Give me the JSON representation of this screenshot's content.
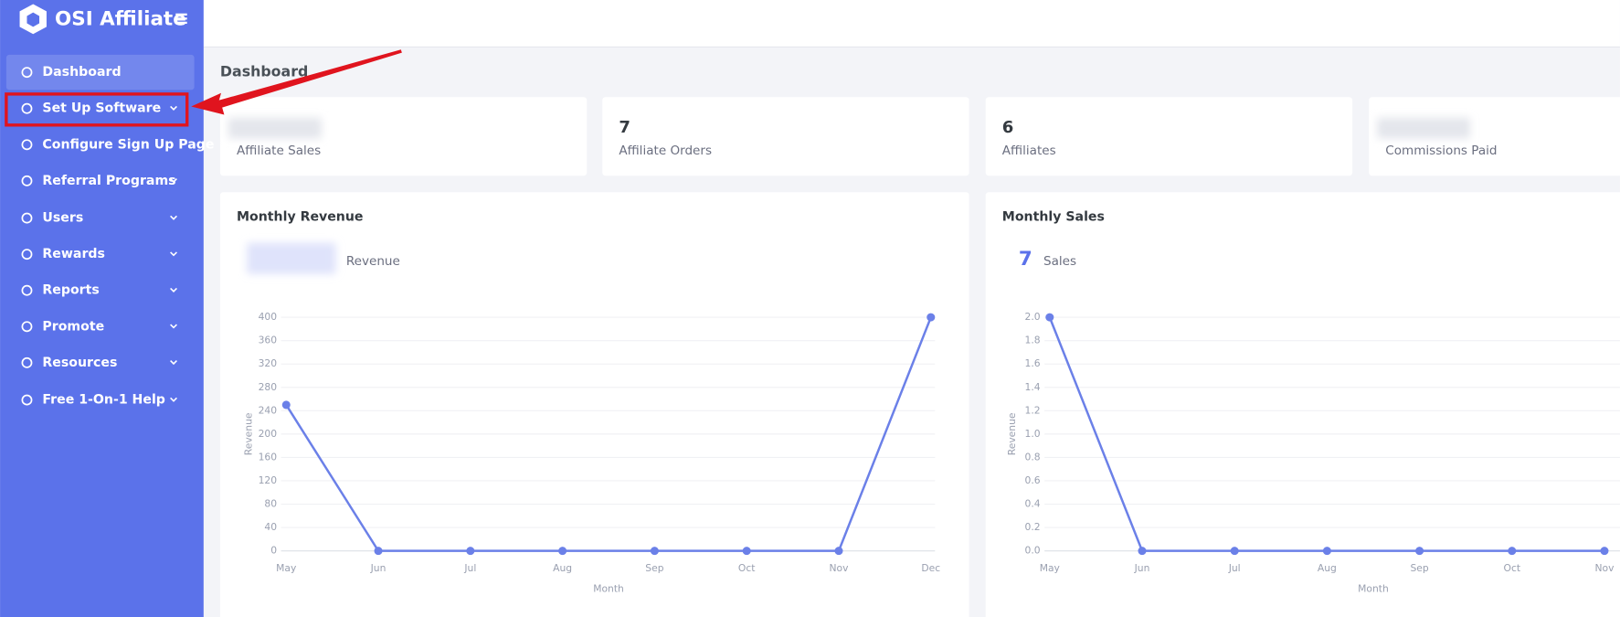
{
  "brand": "OSI Affiliate",
  "nav": [
    "Dashboard",
    "Set Up Software",
    "Configure Sign Up Page",
    "Referral Programs",
    "Users",
    "Rewards",
    "Reports",
    "Promote",
    "Resources",
    "Free 1-On-1 Help"
  ],
  "page_title": "Dashboard",
  "stats": [
    {
      "label": "Affiliate Sales"
    },
    {
      "value": 7,
      "label": "Affiliate Orders"
    },
    {
      "value": 6,
      "label": "Affiliates"
    },
    {
      "label": "Commissions Paid"
    }
  ],
  "chart_data": [
    {
      "type": "line",
      "title": "Monthly Revenue",
      "summary_label": "Revenue",
      "categories": [
        "May",
        "Jun",
        "Jul",
        "Aug",
        "Sep",
        "Oct",
        "Nov",
        "Dec"
      ],
      "series": [
        {
          "color": "#6b80e8",
          "values": [
            250,
            0,
            0,
            0,
            0,
            0,
            0,
            400
          ]
        }
      ],
      "ylim": [
        0,
        400
      ],
      "yticks": [
        0,
        40,
        80,
        120,
        160,
        200,
        240,
        280,
        320,
        360,
        400
      ],
      "ylabel": "Revenue",
      "xlabel": "Month",
      "grid": true
    },
    {
      "type": "line",
      "title": "Monthly Sales",
      "summary_value": 7,
      "summary_label": "Sales",
      "categories": [
        "May",
        "Jun",
        "Jul",
        "Aug",
        "Sep",
        "Oct",
        "Nov"
      ],
      "series": [
        {
          "color": "#6b80e8",
          "values": [
            2,
            0,
            0,
            0,
            0,
            0,
            0
          ]
        }
      ],
      "ylim": [
        0,
        2
      ],
      "yticks": [
        {
          "value": 0,
          "label": "0.0"
        },
        0.2,
        0.4,
        0.6,
        0.8,
        {
          "value": 1,
          "label": "1.0"
        },
        1.2,
        1.4,
        1.6,
        1.8,
        {
          "value": 2,
          "label": "2.0"
        }
      ],
      "ylabel": "Revenue",
      "xlabel": "Month",
      "grid": true
    }
  ]
}
